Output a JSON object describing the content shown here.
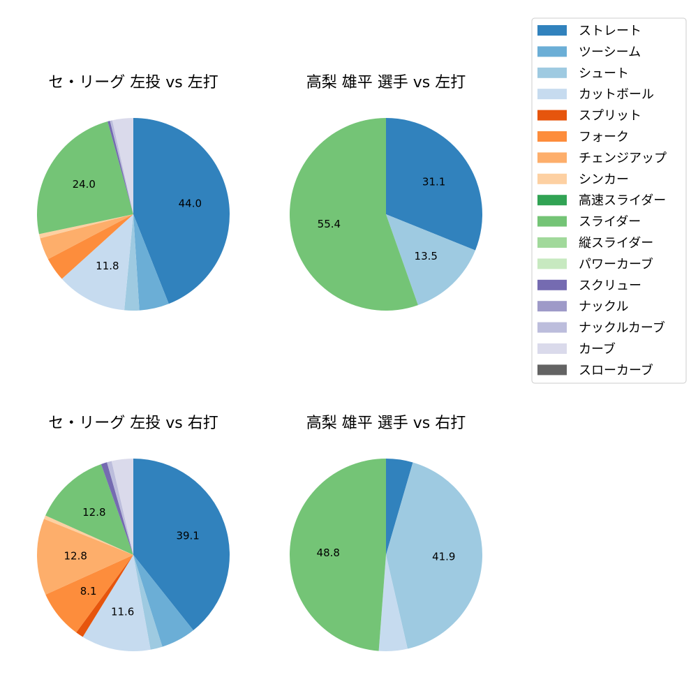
{
  "legend": {
    "items": [
      {
        "label": "ストレート",
        "color": "#3182bd"
      },
      {
        "label": "ツーシーム",
        "color": "#6baed6"
      },
      {
        "label": "シュート",
        "color": "#9ecae1"
      },
      {
        "label": "カットボール",
        "color": "#c6dbef"
      },
      {
        "label": "スプリット",
        "color": "#e6550d"
      },
      {
        "label": "フォーク",
        "color": "#fd8d3c"
      },
      {
        "label": "チェンジアップ",
        "color": "#fdae6b"
      },
      {
        "label": "シンカー",
        "color": "#fdd0a2"
      },
      {
        "label": "高速スライダー",
        "color": "#31a354"
      },
      {
        "label": "スライダー",
        "color": "#74c476"
      },
      {
        "label": "縦スライダー",
        "color": "#a1d99b"
      },
      {
        "label": "パワーカーブ",
        "color": "#c7e9c0"
      },
      {
        "label": "スクリュー",
        "color": "#756bb1"
      },
      {
        "label": "ナックル",
        "color": "#9e9ac8"
      },
      {
        "label": "ナックルカーブ",
        "color": "#bcbddc"
      },
      {
        "label": "カーブ",
        "color": "#dadaeb"
      },
      {
        "label": "スローカーブ",
        "color": "#636363"
      }
    ]
  },
  "chart_data": [
    {
      "type": "pie",
      "title": "セ・リーグ 左投 vs 左打",
      "slices": [
        {
          "pitch": "ストレート",
          "value": 44.0,
          "label": "44.0"
        },
        {
          "pitch": "ツーシーム",
          "value": 5.0
        },
        {
          "pitch": "シュート",
          "value": 2.5
        },
        {
          "pitch": "カットボール",
          "value": 11.8,
          "label": "11.8"
        },
        {
          "pitch": "フォーク",
          "value": 4.0
        },
        {
          "pitch": "チェンジアップ",
          "value": 3.7
        },
        {
          "pitch": "シンカー",
          "value": 0.7
        },
        {
          "pitch": "スライダー",
          "value": 24.0,
          "label": "24.0"
        },
        {
          "pitch": "スクリュー",
          "value": 0.4
        },
        {
          "pitch": "ナックルカーブ",
          "value": 0.4
        },
        {
          "pitch": "カーブ",
          "value": 3.5
        }
      ]
    },
    {
      "type": "pie",
      "title": "高梨 雄平 選手 vs 左打",
      "slices": [
        {
          "pitch": "ストレート",
          "value": 31.1,
          "label": "31.1"
        },
        {
          "pitch": "シュート",
          "value": 13.5,
          "label": "13.5"
        },
        {
          "pitch": "スライダー",
          "value": 55.4,
          "label": "55.4"
        }
      ]
    },
    {
      "type": "pie",
      "title": "セ・リーグ 左投 vs 右打",
      "slices": [
        {
          "pitch": "ストレート",
          "value": 39.1,
          "label": "39.1"
        },
        {
          "pitch": "ツーシーム",
          "value": 5.8
        },
        {
          "pitch": "シュート",
          "value": 2.0
        },
        {
          "pitch": "カットボール",
          "value": 11.6,
          "label": "11.6"
        },
        {
          "pitch": "スプリット",
          "value": 1.3
        },
        {
          "pitch": "フォーク",
          "value": 8.1,
          "label": "8.1"
        },
        {
          "pitch": "チェンジアップ",
          "value": 12.8,
          "label": "12.8"
        },
        {
          "pitch": "シンカー",
          "value": 0.6
        },
        {
          "pitch": "スライダー",
          "value": 12.8,
          "label": "12.8"
        },
        {
          "pitch": "スクリュー",
          "value": 1.0
        },
        {
          "pitch": "ナックルカーブ",
          "value": 0.8
        },
        {
          "pitch": "カーブ",
          "value": 3.6
        }
      ]
    },
    {
      "type": "pie",
      "title": "高梨 雄平 選手 vs 右打",
      "slices": [
        {
          "pitch": "ストレート",
          "value": 4.5
        },
        {
          "pitch": "シュート",
          "value": 41.9,
          "label": "41.9"
        },
        {
          "pitch": "カットボール",
          "value": 4.8
        },
        {
          "pitch": "スライダー",
          "value": 48.8,
          "label": "48.8"
        }
      ]
    }
  ]
}
